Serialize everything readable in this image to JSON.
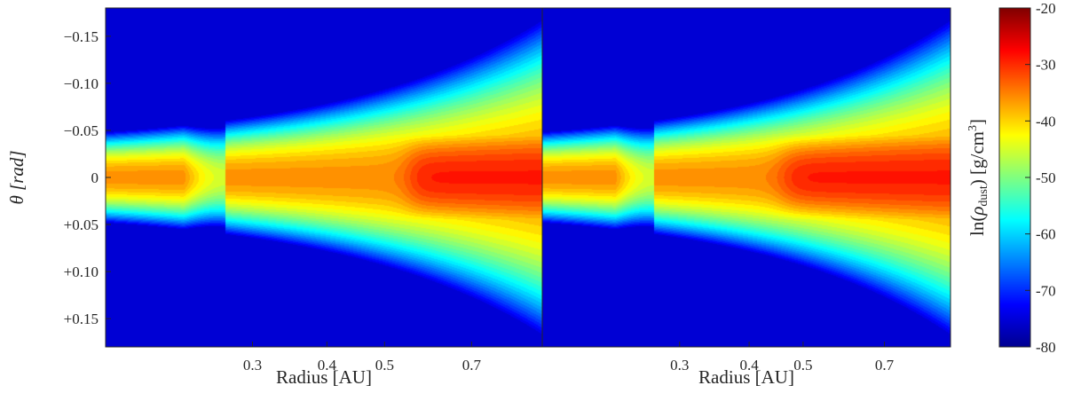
{
  "chart_data": [
    {
      "type": "heatmap",
      "panel": "left",
      "xlabel": "Radius [AU]",
      "ylabel": "θ [rad]",
      "x_scale": "log",
      "x_range": [
        0.17,
        0.92
      ],
      "x_ticks": [
        0.3,
        0.4,
        0.5,
        0.7
      ],
      "x_tick_labels": [
        "0.3",
        "0.4",
        "0.5",
        "0.7"
      ],
      "ylim": [
        -0.18,
        0.18
      ],
      "y_ticks": [
        -0.15,
        -0.1,
        -0.05,
        0,
        0.05,
        0.1,
        0.15
      ],
      "y_tick_labels": [
        "−0.15",
        "−0.10",
        "−0.05",
        "0",
        "+0.05",
        "+0.10",
        "+0.15"
      ],
      "field": {
        "midplane_core_value": -29,
        "core_inner_radius": 0.55,
        "inner_edge_radius": 0.27,
        "background_value_at_edges": -68
      }
    },
    {
      "type": "heatmap",
      "panel": "right",
      "xlabel": "Radius [AU]",
      "x_scale": "log",
      "x_range": [
        0.17,
        0.92
      ],
      "x_ticks": [
        0.3,
        0.4,
        0.5,
        0.7
      ],
      "x_tick_labels": [
        "0.3",
        "0.4",
        "0.5",
        "0.7"
      ],
      "ylim": [
        -0.18,
        0.18
      ],
      "field": {
        "midplane_core_value": -29,
        "core_inner_radius": 0.46,
        "inner_edge_radius": 0.27,
        "background_value_at_edges": -68
      }
    }
  ],
  "colorbar": {
    "label_prefix": "ln(",
    "label_rho": "ρ",
    "label_sub": "dust",
    "label_mid": ") [g/cm",
    "label_sup": "3",
    "label_suffix": "]",
    "range": [
      -80,
      -20
    ],
    "ticks": [
      -20,
      -30,
      -40,
      -50,
      -60,
      -70,
      -80
    ],
    "tick_labels": [
      "-20",
      "-30",
      "-40",
      "-50",
      "-60",
      "-70",
      "-80"
    ],
    "colormap": "jet"
  }
}
